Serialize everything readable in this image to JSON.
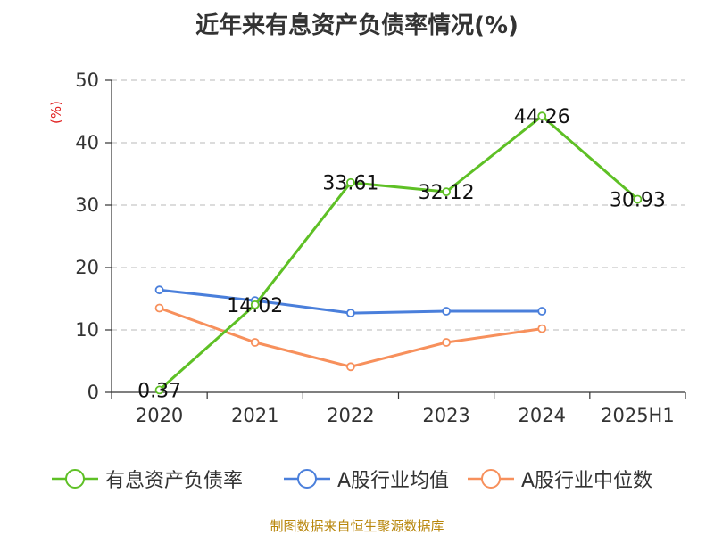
{
  "chart_data": {
    "type": "line",
    "title": "近年来有息资产负债率情况(%)",
    "ylabel": "(%)",
    "xlabel": "",
    "categories": [
      "2020",
      "2021",
      "2022",
      "2023",
      "2024",
      "2025H1"
    ],
    "ylim": [
      0,
      50
    ],
    "yticks": [
      0,
      10,
      20,
      30,
      40,
      50
    ],
    "grid": "horizontal-dashed",
    "legend_position": "bottom",
    "series": [
      {
        "name": "有息资产负债率",
        "color": "#5ec025",
        "values": [
          0.37,
          14.02,
          33.61,
          32.12,
          44.26,
          30.93
        ],
        "labels": [
          "0.37",
          "14.02",
          "33.61",
          "32.12",
          "44.26",
          "30.93"
        ]
      },
      {
        "name": "A股行业均值",
        "color": "#4a7fdb",
        "values": [
          16.4,
          14.7,
          12.7,
          13.0,
          13.0,
          null
        ]
      },
      {
        "name": "A股行业中位数",
        "color": "#f7905c",
        "values": [
          13.5,
          8.0,
          4.1,
          8.0,
          10.2,
          null
        ]
      }
    ]
  },
  "footer": {
    "source": "制图数据来自恒生聚源数据库"
  }
}
